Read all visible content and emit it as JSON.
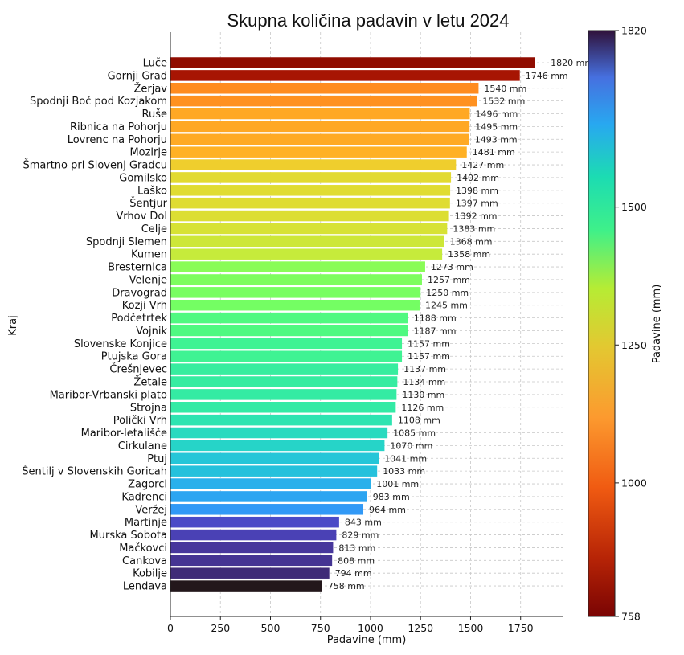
{
  "chart_data": {
    "type": "bar",
    "orientation": "horizontal",
    "title": "Skupna količina padavin v letu 2024",
    "xlabel": "Padavine (mm)",
    "ylabel": "Kraj",
    "xlim": [
      0,
      1960
    ],
    "xticks": [
      0,
      250,
      500,
      750,
      1000,
      1250,
      1500,
      1750
    ],
    "grid": true,
    "value_suffix": " mm",
    "categories": [
      "Luče",
      "Gornji Grad",
      "Žerjav",
      "Spodnji Boč pod Kozjakom",
      "Ruše",
      "Ribnica na Pohorju",
      "Lovrenc na Pohorju",
      "Mozirje",
      "Šmartno pri Slovenj Gradcu",
      "Gomilsko",
      "Laško",
      "Šentjur",
      "Vrhov Dol",
      "Celje",
      "Spodnji Slemen",
      "Kumen",
      "Bresternica",
      "Velenje",
      "Dravograd",
      "Kozji Vrh",
      "Podčetrtek",
      "Vojnik",
      "Slovenske Konjice",
      "Ptujska Gora",
      "Črešnjevec",
      "Žetale",
      "Maribor-Vrbanski plato",
      "Strojna",
      "Polički Vrh",
      "Maribor-letališče",
      "Cirkulane",
      "Ptuj",
      "Šentilj v Slovenskih Goricah",
      "Zagorci",
      "Kadrenci",
      "Veržej",
      "Martinje",
      "Murska Sobota",
      "Mačkovci",
      "Cankova",
      "Kobilje",
      "Lendava"
    ],
    "values": [
      1820,
      1746,
      1540,
      1532,
      1496,
      1495,
      1493,
      1481,
      1427,
      1402,
      1398,
      1397,
      1392,
      1383,
      1368,
      1358,
      1273,
      1257,
      1250,
      1245,
      1188,
      1187,
      1157,
      1157,
      1137,
      1134,
      1130,
      1126,
      1108,
      1085,
      1070,
      1041,
      1033,
      1001,
      983,
      964,
      843,
      829,
      813,
      808,
      794,
      758
    ],
    "colorbar": {
      "label": "Padavine (mm)",
      "min": 758,
      "max": 1820,
      "ticks": [
        758,
        1000,
        1250,
        1500,
        1820
      ],
      "colormap": "turbo"
    }
  }
}
